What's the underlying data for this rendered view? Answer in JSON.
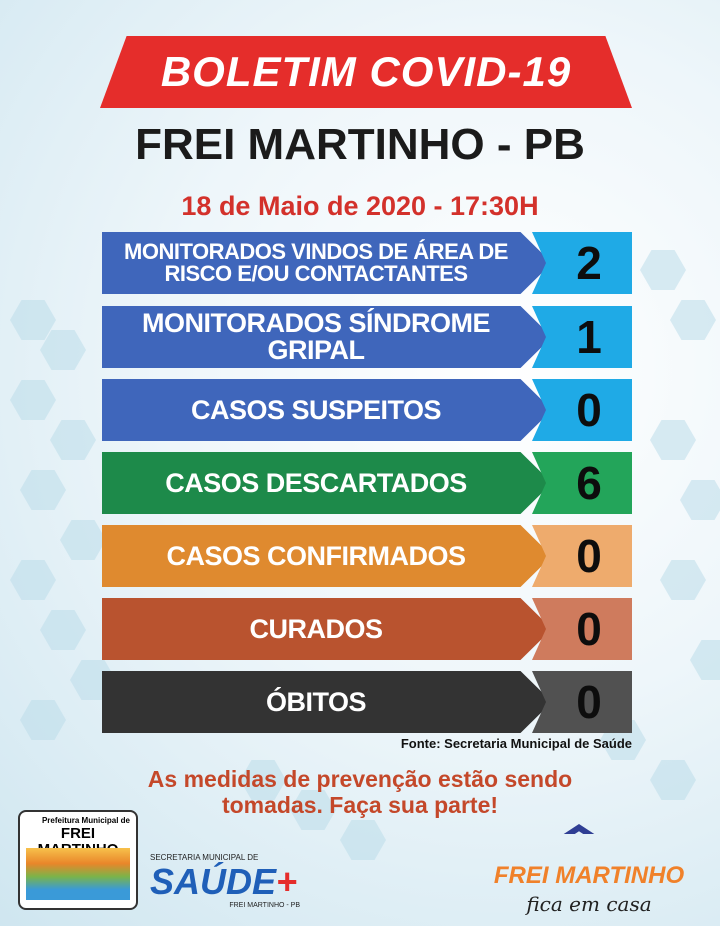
{
  "banner": {
    "title": "BOLETIM COVID-19"
  },
  "header": {
    "city": "FREI MARTINHO - PB",
    "date": "18 de Maio de 2020 - 17:30H"
  },
  "rows": [
    {
      "label": "MONITORADOS VINDOS DE ÁREA DE RISCO E/OU CONTACTANTES",
      "value": "2",
      "color": "#3f66bb",
      "value_color": "#1faae6"
    },
    {
      "label": "MONITORADOS  SÍNDROME GRIPAL",
      "value": "1",
      "color": "#3f66bb",
      "value_color": "#1faae6"
    },
    {
      "label": "CASOS SUSPEITOS",
      "value": "0",
      "color": "#3f66bb",
      "value_color": "#1faae6"
    },
    {
      "label": "CASOS DESCARTADOS",
      "value": "6",
      "color": "#1d8a4a",
      "value_color": "#23a55a"
    },
    {
      "label": "CASOS CONFIRMADOS",
      "value": "0",
      "color": "#df8a2f",
      "value_color": "#eeab6d"
    },
    {
      "label": "CURADOS",
      "value": "0",
      "color": "#b9532f",
      "value_color": "#cf7b5d"
    },
    {
      "label": "ÓBITOS",
      "value": "0",
      "color": "#333333",
      "value_color": "#515151"
    }
  ],
  "source": "Fonte: Secretaria Municipal de Saúde",
  "message": {
    "line1": "As medidas de prevenção estão sendo",
    "line2": "tomadas. Faça sua parte!"
  },
  "logos": {
    "prefeitura": {
      "top": "Prefeitura Municipal de",
      "name": "FREI MARTINHO"
    },
    "saude": {
      "top": "SECRETARIA MUNICIPAL DE",
      "name": "SAÚDE",
      "bottom": "FREI MARTINHO - PB"
    },
    "campaign": {
      "name": "FREI MARTINHO",
      "tagline": "fica em casa"
    }
  }
}
